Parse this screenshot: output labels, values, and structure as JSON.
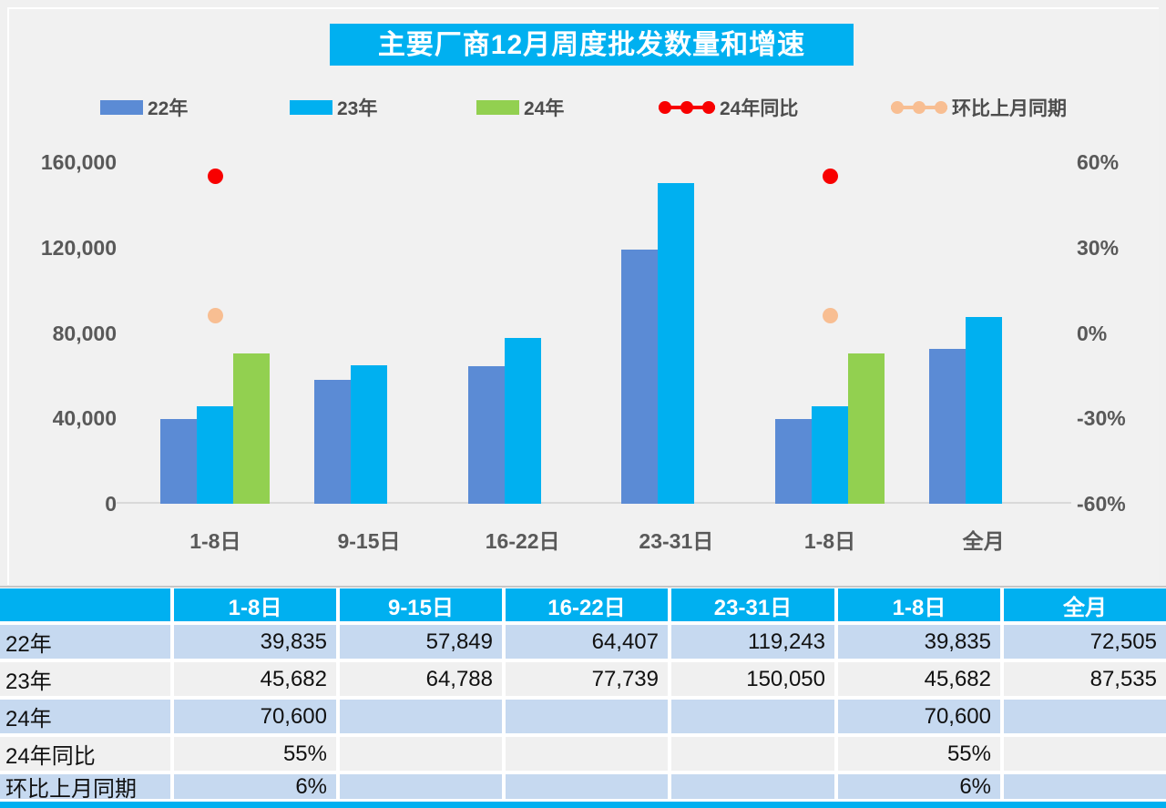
{
  "title": "主要厂商12月周度批发数量和增速",
  "colors": {
    "accent_cyan": "#00b0f0",
    "bar_22": "#5b8bd5",
    "bar_23": "#00b0f0",
    "bar_24": "#92d050",
    "dot_yoy": "#f80000",
    "dot_mom": "#f8be92",
    "row_blue": "#c6d9f0",
    "row_gray": "#f0f0f0",
    "axis_text": "#595959"
  },
  "chart_data": {
    "type": "bar",
    "title": "主要厂商12月周度批发数量和增速",
    "categories": [
      "1-8日",
      "9-15日",
      "16-22日",
      "23-31日",
      "1-8日",
      "全月"
    ],
    "series": [
      {
        "name": "22年",
        "type": "bar",
        "color": "#5b8bd5",
        "values": [
          39835,
          57849,
          64407,
          119243,
          39835,
          72505
        ]
      },
      {
        "name": "23年",
        "type": "bar",
        "color": "#00b0f0",
        "values": [
          45682,
          64788,
          77739,
          150050,
          45682,
          87535
        ]
      },
      {
        "name": "24年",
        "type": "bar",
        "color": "#92d050",
        "values": [
          70600,
          null,
          null,
          null,
          70600,
          null
        ]
      },
      {
        "name": "24年同比",
        "type": "scatter",
        "color": "#f80000",
        "axis": "right",
        "values": [
          55,
          null,
          null,
          null,
          55,
          null
        ]
      },
      {
        "name": "环比上月同期",
        "type": "scatter",
        "color": "#f8be92",
        "axis": "right",
        "values": [
          6,
          null,
          null,
          null,
          6,
          null
        ]
      }
    ],
    "left_axis": {
      "min": 0,
      "max": 160000,
      "ticks": [
        "160,000",
        "120,000",
        "80,000",
        "40,000",
        "0"
      ]
    },
    "right_axis": {
      "min": -60,
      "max": 60,
      "ticks": [
        "60%",
        "30%",
        "0%",
        "-30%",
        "-60%"
      ]
    },
    "grid": false,
    "legend_position": "top"
  },
  "table": {
    "header": [
      "",
      "1-8日",
      "9-15日",
      "16-22日",
      "23-31日",
      "1-8日",
      "全月"
    ],
    "rows": [
      {
        "label": "22年",
        "values": [
          "39,835",
          "57,849",
          "64,407",
          "119,243",
          "39,835",
          "72,505"
        ]
      },
      {
        "label": "23年",
        "values": [
          "45,682",
          "64,788",
          "77,739",
          "150,050",
          "45,682",
          "87,535"
        ]
      },
      {
        "label": "24年",
        "values": [
          "70,600",
          "",
          "",
          "",
          "70,600",
          ""
        ]
      },
      {
        "label": "24年同比",
        "values": [
          "55%",
          "",
          "",
          "",
          "55%",
          ""
        ]
      },
      {
        "label": "环比上月同期",
        "values": [
          "6%",
          "",
          "",
          "",
          "6%",
          ""
        ]
      }
    ]
  }
}
